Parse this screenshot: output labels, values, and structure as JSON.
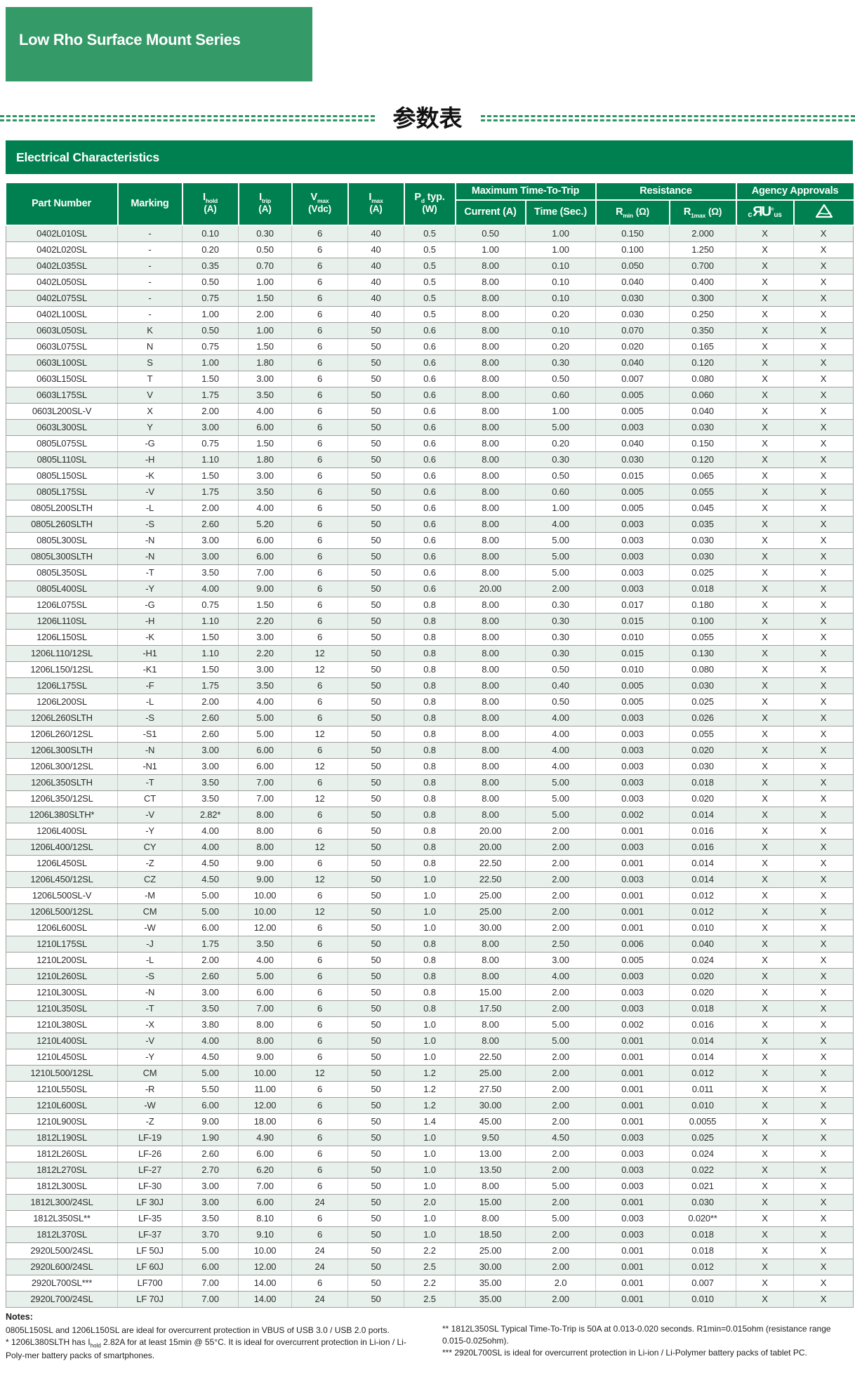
{
  "page": {
    "banner_title": "Low Rho Surface Mount Series",
    "cjk_title": "参数表",
    "section_title": "Electrical Characteristics"
  },
  "colors": {
    "green_mid": "#349a67",
    "green_dark": "#008050",
    "line_green": "#2e9566",
    "row_alt": "#e7f0ea"
  },
  "table": {
    "columns": {
      "part": "Part Number",
      "marking": "Marking",
      "ihold": {
        "sym": "I",
        "sub": "hold",
        "unit": "(A)"
      },
      "itrip": {
        "sym": "I",
        "sub": "trip",
        "unit": "(A)"
      },
      "vmax": {
        "sym": "V",
        "sub": "max",
        "unit": "(Vdc)"
      },
      "imax": {
        "sym": "I",
        "sub": "max",
        "unit": "(A)"
      },
      "pd": {
        "sym": "P",
        "sub": "d",
        "mid": " typ.",
        "unit": "(W)"
      },
      "trip_group": "Maximum Time-To-Trip",
      "current": "Current (A)",
      "time": "Time (Sec.)",
      "res_group": "Resistance",
      "rmin": {
        "sym": "R",
        "sub": "min",
        "unit": "(Ω)"
      },
      "r1max": {
        "sym": "R",
        "sub": "1max",
        "unit": "(Ω)"
      },
      "agency_group": "Agency Approvals",
      "cul": {
        "c": "c",
        "mark": "ЯU",
        "reg": "®",
        "us": "us"
      }
    },
    "col_keys": [
      "part_number",
      "marking",
      "i_hold",
      "i_trip",
      "v_max",
      "i_max",
      "pd_typ",
      "ttt_current",
      "ttt_time",
      "r_min",
      "r_1max",
      "cul-approval",
      "triangle-approval"
    ],
    "rows": [
      [
        "0402L010SL",
        "-",
        "0.10",
        "0.30",
        "6",
        "40",
        "0.5",
        "0.50",
        "1.00",
        "0.150",
        "2.000",
        "X",
        "X"
      ],
      [
        "0402L020SL",
        "-",
        "0.20",
        "0.50",
        "6",
        "40",
        "0.5",
        "1.00",
        "1.00",
        "0.100",
        "1.250",
        "X",
        "X"
      ],
      [
        "0402L035SL",
        "-",
        "0.35",
        "0.70",
        "6",
        "40",
        "0.5",
        "8.00",
        "0.10",
        "0.050",
        "0.700",
        "X",
        "X"
      ],
      [
        "0402L050SL",
        "-",
        "0.50",
        "1.00",
        "6",
        "40",
        "0.5",
        "8.00",
        "0.10",
        "0.040",
        "0.400",
        "X",
        "X"
      ],
      [
        "0402L075SL",
        "-",
        "0.75",
        "1.50",
        "6",
        "40",
        "0.5",
        "8.00",
        "0.10",
        "0.030",
        "0.300",
        "X",
        "X"
      ],
      [
        "0402L100SL",
        "-",
        "1.00",
        "2.00",
        "6",
        "40",
        "0.5",
        "8.00",
        "0.20",
        "0.030",
        "0.250",
        "X",
        "X"
      ],
      [
        "0603L050SL",
        "K",
        "0.50",
        "1.00",
        "6",
        "50",
        "0.6",
        "8.00",
        "0.10",
        "0.070",
        "0.350",
        "X",
        "X"
      ],
      [
        "0603L075SL",
        "N",
        "0.75",
        "1.50",
        "6",
        "50",
        "0.6",
        "8.00",
        "0.20",
        "0.020",
        "0.165",
        "X",
        "X"
      ],
      [
        "0603L100SL",
        "S",
        "1.00",
        "1.80",
        "6",
        "50",
        "0.6",
        "8.00",
        "0.30",
        "0.040",
        "0.120",
        "X",
        "X"
      ],
      [
        "0603L150SL",
        "T",
        "1.50",
        "3.00",
        "6",
        "50",
        "0.6",
        "8.00",
        "0.50",
        "0.007",
        "0.080",
        "X",
        "X"
      ],
      [
        "0603L175SL",
        "V",
        "1.75",
        "3.50",
        "6",
        "50",
        "0.6",
        "8.00",
        "0.60",
        "0.005",
        "0.060",
        "X",
        "X"
      ],
      [
        "0603L200SL-V",
        "X",
        "2.00",
        "4.00",
        "6",
        "50",
        "0.6",
        "8.00",
        "1.00",
        "0.005",
        "0.040",
        "X",
        "X"
      ],
      [
        "0603L300SL",
        "Y",
        "3.00",
        "6.00",
        "6",
        "50",
        "0.6",
        "8.00",
        "5.00",
        "0.003",
        "0.030",
        "X",
        "X"
      ],
      [
        "0805L075SL",
        "-G",
        "0.75",
        "1.50",
        "6",
        "50",
        "0.6",
        "8.00",
        "0.20",
        "0.040",
        "0.150",
        "X",
        "X"
      ],
      [
        "0805L110SL",
        "-H",
        "1.10",
        "1.80",
        "6",
        "50",
        "0.6",
        "8.00",
        "0.30",
        "0.030",
        "0.120",
        "X",
        "X"
      ],
      [
        "0805L150SL",
        "-K",
        "1.50",
        "3.00",
        "6",
        "50",
        "0.6",
        "8.00",
        "0.50",
        "0.015",
        "0.065",
        "X",
        "X"
      ],
      [
        "0805L175SL",
        "-V",
        "1.75",
        "3.50",
        "6",
        "50",
        "0.6",
        "8.00",
        "0.60",
        "0.005",
        "0.055",
        "X",
        "X"
      ],
      [
        "0805L200SLTH",
        "-L",
        "2.00",
        "4.00",
        "6",
        "50",
        "0.6",
        "8.00",
        "1.00",
        "0.005",
        "0.045",
        "X",
        "X"
      ],
      [
        "0805L260SLTH",
        "-S",
        "2.60",
        "5.20",
        "6",
        "50",
        "0.6",
        "8.00",
        "4.00",
        "0.003",
        "0.035",
        "X",
        "X"
      ],
      [
        "0805L300SL",
        "-N",
        "3.00",
        "6.00",
        "6",
        "50",
        "0.6",
        "8.00",
        "5.00",
        "0.003",
        "0.030",
        "X",
        "X"
      ],
      [
        "0805L300SLTH",
        "-N",
        "3.00",
        "6.00",
        "6",
        "50",
        "0.6",
        "8.00",
        "5.00",
        "0.003",
        "0.030",
        "X",
        "X"
      ],
      [
        "0805L350SL",
        "-T",
        "3.50",
        "7.00",
        "6",
        "50",
        "0.6",
        "8.00",
        "5.00",
        "0.003",
        "0.025",
        "X",
        "X"
      ],
      [
        "0805L400SL",
        "-Y",
        "4.00",
        "9.00",
        "6",
        "50",
        "0.6",
        "20.00",
        "2.00",
        "0.003",
        "0.018",
        "X",
        "X"
      ],
      [
        "1206L075SL",
        "-G",
        "0.75",
        "1.50",
        "6",
        "50",
        "0.8",
        "8.00",
        "0.30",
        "0.017",
        "0.180",
        "X",
        "X"
      ],
      [
        "1206L110SL",
        "-H",
        "1.10",
        "2.20",
        "6",
        "50",
        "0.8",
        "8.00",
        "0.30",
        "0.015",
        "0.100",
        "X",
        "X"
      ],
      [
        "1206L150SL",
        "-K",
        "1.50",
        "3.00",
        "6",
        "50",
        "0.8",
        "8.00",
        "0.30",
        "0.010",
        "0.055",
        "X",
        "X"
      ],
      [
        "1206L110/12SL",
        "-H1",
        "1.10",
        "2.20",
        "12",
        "50",
        "0.8",
        "8.00",
        "0.30",
        "0.015",
        "0.130",
        "X",
        "X"
      ],
      [
        "1206L150/12SL",
        "-K1",
        "1.50",
        "3.00",
        "12",
        "50",
        "0.8",
        "8.00",
        "0.50",
        "0.010",
        "0.080",
        "X",
        "X"
      ],
      [
        "1206L175SL",
        "-F",
        "1.75",
        "3.50",
        "6",
        "50",
        "0.8",
        "8.00",
        "0.40",
        "0.005",
        "0.030",
        "X",
        "X"
      ],
      [
        "1206L200SL",
        "-L",
        "2.00",
        "4.00",
        "6",
        "50",
        "0.8",
        "8.00",
        "0.50",
        "0.005",
        "0.025",
        "X",
        "X"
      ],
      [
        "1206L260SLTH",
        "-S",
        "2.60",
        "5.00",
        "6",
        "50",
        "0.8",
        "8.00",
        "4.00",
        "0.003",
        "0.026",
        "X",
        "X"
      ],
      [
        "1206L260/12SL",
        "-S1",
        "2.60",
        "5.00",
        "12",
        "50",
        "0.8",
        "8.00",
        "4.00",
        "0.003",
        "0.055",
        "X",
        "X"
      ],
      [
        "1206L300SLTH",
        "-N",
        "3.00",
        "6.00",
        "6",
        "50",
        "0.8",
        "8.00",
        "4.00",
        "0.003",
        "0.020",
        "X",
        "X"
      ],
      [
        "1206L300/12SL",
        "-N1",
        "3.00",
        "6.00",
        "12",
        "50",
        "0.8",
        "8.00",
        "4.00",
        "0.003",
        "0.030",
        "X",
        "X"
      ],
      [
        "1206L350SLTH",
        "-T",
        "3.50",
        "7.00",
        "6",
        "50",
        "0.8",
        "8.00",
        "5.00",
        "0.003",
        "0.018",
        "X",
        "X"
      ],
      [
        "1206L350/12SL",
        "CT",
        "3.50",
        "7.00",
        "12",
        "50",
        "0.8",
        "8.00",
        "5.00",
        "0.003",
        "0.020",
        "X",
        "X"
      ],
      [
        "1206L380SLTH*",
        "-V",
        "2.82*",
        "8.00",
        "6",
        "50",
        "0.8",
        "8.00",
        "5.00",
        "0.002",
        "0.014",
        "X",
        "X"
      ],
      [
        "1206L400SL",
        "-Y",
        "4.00",
        "8.00",
        "6",
        "50",
        "0.8",
        "20.00",
        "2.00",
        "0.001",
        "0.016",
        "X",
        "X"
      ],
      [
        "1206L400/12SL",
        "CY",
        "4.00",
        "8.00",
        "12",
        "50",
        "0.8",
        "20.00",
        "2.00",
        "0.003",
        "0.016",
        "X",
        "X"
      ],
      [
        "1206L450SL",
        "-Z",
        "4.50",
        "9.00",
        "6",
        "50",
        "0.8",
        "22.50",
        "2.00",
        "0.001",
        "0.014",
        "X",
        "X"
      ],
      [
        "1206L450/12SL",
        "CZ",
        "4.50",
        "9.00",
        "12",
        "50",
        "1.0",
        "22.50",
        "2.00",
        "0.003",
        "0.014",
        "X",
        "X"
      ],
      [
        "1206L500SL-V",
        "-M",
        "5.00",
        "10.00",
        "6",
        "50",
        "1.0",
        "25.00",
        "2.00",
        "0.001",
        "0.012",
        "X",
        "X"
      ],
      [
        "1206L500/12SL",
        "CM",
        "5.00",
        "10.00",
        "12",
        "50",
        "1.0",
        "25.00",
        "2.00",
        "0.001",
        "0.012",
        "X",
        "X"
      ],
      [
        "1206L600SL",
        "-W",
        "6.00",
        "12.00",
        "6",
        "50",
        "1.0",
        "30.00",
        "2.00",
        "0.001",
        "0.010",
        "X",
        "X"
      ],
      [
        "1210L175SL",
        "-J",
        "1.75",
        "3.50",
        "6",
        "50",
        "0.8",
        "8.00",
        "2.50",
        "0.006",
        "0.040",
        "X",
        "X"
      ],
      [
        "1210L200SL",
        "-L",
        "2.00",
        "4.00",
        "6",
        "50",
        "0.8",
        "8.00",
        "3.00",
        "0.005",
        "0.024",
        "X",
        "X"
      ],
      [
        "1210L260SL",
        "-S",
        "2.60",
        "5.00",
        "6",
        "50",
        "0.8",
        "8.00",
        "4.00",
        "0.003",
        "0.020",
        "X",
        "X"
      ],
      [
        "1210L300SL",
        "-N",
        "3.00",
        "6.00",
        "6",
        "50",
        "0.8",
        "15.00",
        "2.00",
        "0.003",
        "0.020",
        "X",
        "X"
      ],
      [
        "1210L350SL",
        "-T",
        "3.50",
        "7.00",
        "6",
        "50",
        "0.8",
        "17.50",
        "2.00",
        "0.003",
        "0.018",
        "X",
        "X"
      ],
      [
        "1210L380SL",
        "-X",
        "3.80",
        "8.00",
        "6",
        "50",
        "1.0",
        "8.00",
        "5.00",
        "0.002",
        "0.016",
        "X",
        "X"
      ],
      [
        "1210L400SL",
        "-V",
        "4.00",
        "8.00",
        "6",
        "50",
        "1.0",
        "8.00",
        "5.00",
        "0.001",
        "0.014",
        "X",
        "X"
      ],
      [
        "1210L450SL",
        "-Y",
        "4.50",
        "9.00",
        "6",
        "50",
        "1.0",
        "22.50",
        "2.00",
        "0.001",
        "0.014",
        "X",
        "X"
      ],
      [
        "1210L500/12SL",
        "CM",
        "5.00",
        "10.00",
        "12",
        "50",
        "1.2",
        "25.00",
        "2.00",
        "0.001",
        "0.012",
        "X",
        "X"
      ],
      [
        "1210L550SL",
        "-R",
        "5.50",
        "11.00",
        "6",
        "50",
        "1.2",
        "27.50",
        "2.00",
        "0.001",
        "0.011",
        "X",
        "X"
      ],
      [
        "1210L600SL",
        "-W",
        "6.00",
        "12.00",
        "6",
        "50",
        "1.2",
        "30.00",
        "2.00",
        "0.001",
        "0.010",
        "X",
        "X"
      ],
      [
        "1210L900SL",
        "-Z",
        "9.00",
        "18.00",
        "6",
        "50",
        "1.4",
        "45.00",
        "2.00",
        "0.001",
        "0.0055",
        "X",
        "X"
      ],
      [
        "1812L190SL",
        "LF-19",
        "1.90",
        "4.90",
        "6",
        "50",
        "1.0",
        "9.50",
        "4.50",
        "0.003",
        "0.025",
        "X",
        "X"
      ],
      [
        "1812L260SL",
        "LF-26",
        "2.60",
        "6.00",
        "6",
        "50",
        "1.0",
        "13.00",
        "2.00",
        "0.003",
        "0.024",
        "X",
        "X"
      ],
      [
        "1812L270SL",
        "LF-27",
        "2.70",
        "6.20",
        "6",
        "50",
        "1.0",
        "13.50",
        "2.00",
        "0.003",
        "0.022",
        "X",
        "X"
      ],
      [
        "1812L300SL",
        "LF-30",
        "3.00",
        "7.00",
        "6",
        "50",
        "1.0",
        "8.00",
        "5.00",
        "0.003",
        "0.021",
        "X",
        "X"
      ],
      [
        "1812L300/24SL",
        "LF 30J",
        "3.00",
        "6.00",
        "24",
        "50",
        "2.0",
        "15.00",
        "2.00",
        "0.001",
        "0.030",
        "X",
        "X"
      ],
      [
        "1812L350SL**",
        "LF-35",
        "3.50",
        "8.10",
        "6",
        "50",
        "1.0",
        "8.00",
        "5.00",
        "0.003",
        "0.020**",
        "X",
        "X"
      ],
      [
        "1812L370SL",
        "LF-37",
        "3.70",
        "9.10",
        "6",
        "50",
        "1.0",
        "18.50",
        "2.00",
        "0.003",
        "0.018",
        "X",
        "X"
      ],
      [
        "2920L500/24SL",
        "LF 50J",
        "5.00",
        "10.00",
        "24",
        "50",
        "2.2",
        "25.00",
        "2.00",
        "0.001",
        "0.018",
        "X",
        "X"
      ],
      [
        "2920L600/24SL",
        "LF 60J",
        "6.00",
        "12.00",
        "24",
        "50",
        "2.5",
        "30.00",
        "2.00",
        "0.001",
        "0.012",
        "X",
        "X"
      ],
      [
        "2920L700SL***",
        "LF700",
        "7.00",
        "14.00",
        "6",
        "50",
        "2.2",
        "35.00",
        "2.0",
        "0.001",
        "0.007",
        "X",
        "X"
      ],
      [
        "2920L700/24SL",
        "LF 70J",
        "7.00",
        "14.00",
        "24",
        "50",
        "2.5",
        "35.00",
        "2.00",
        "0.001",
        "0.010",
        "X",
        "X"
      ]
    ]
  },
  "notes": {
    "heading": "Notes:",
    "left1": "0805L150SL and 1206L150SL are ideal for overcurrent protection in VBUS of USB 3.0 / USB 2.0 ports.",
    "left2_pre": "* 1206L380SLTH has I",
    "left2_sub": "hold",
    "left2_post": " 2.82A for at least 15min @ 55°C. It is ideal for overcurrent protection in Li-ion / Li-Poly-mer battery packs of smartphones.",
    "right1": "** 1812L350SL Typical Time-To-Trip is 50A at 0.013-0.020 seconds. R1min=0.015ohm (resistance range 0.015-0.025ohm).",
    "right2": "*** 2920L700SL is ideal for overcurrent protection in Li-ion / Li-Polymer battery packs of tablet PC."
  }
}
